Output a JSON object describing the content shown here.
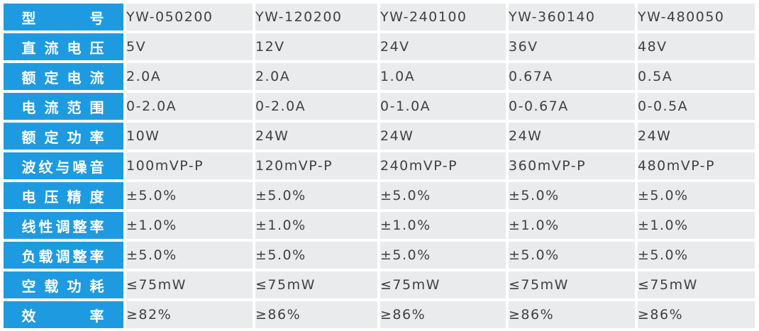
{
  "spec_table": {
    "columns": [
      {
        "model": "YW-050200",
        "dc_voltage": "5V",
        "rated_current": "2.0A",
        "current_range": "0-2.0A",
        "rated_power": "10W",
        "ripple_noise": "100mVP-P",
        "voltage_accuracy": "±5.0%",
        "line_regulation": "±1.0%",
        "load_regulation": "±5.0%",
        "no_load_power": "≤75mW",
        "efficiency": "≥82%"
      },
      {
        "model": "YW-120200",
        "dc_voltage": "12V",
        "rated_current": "2.0A",
        "current_range": "0-2.0A",
        "rated_power": "24W",
        "ripple_noise": "120mVP-P",
        "voltage_accuracy": "±5.0%",
        "line_regulation": "±1.0%",
        "load_regulation": "±5.0%",
        "no_load_power": "≤75mW",
        "efficiency": "≥86%"
      },
      {
        "model": "YW-240100",
        "dc_voltage": "24V",
        "rated_current": "1.0A",
        "current_range": "0-1.0A",
        "rated_power": "24W",
        "ripple_noise": "240mVP-P",
        "voltage_accuracy": "±5.0%",
        "line_regulation": "±1.0%",
        "load_regulation": "±5.0%",
        "no_load_power": "≤75mW",
        "efficiency": "≥86%"
      },
      {
        "model": "YW-360140",
        "dc_voltage": "36V",
        "rated_current": "0.67A",
        "current_range": "0-0.67A",
        "rated_power": "24W",
        "ripple_noise": "360mVP-P",
        "voltage_accuracy": "±5.0%",
        "line_regulation": "±1.0%",
        "load_regulation": "±5.0%",
        "no_load_power": "≤75mW",
        "efficiency": "≥86%"
      },
      {
        "model": "YW-480050",
        "dc_voltage": "48V",
        "rated_current": "0.5A",
        "current_range": "0-0.5A",
        "rated_power": "24W",
        "ripple_noise": "480mVP-P",
        "voltage_accuracy": "±5.0%",
        "line_regulation": "±1.0%",
        "load_regulation": "±5.0%",
        "no_load_power": "≤75mW",
        "efficiency": "≥86%"
      }
    ],
    "row_labels": {
      "model": "型号",
      "dc_voltage": "直流电压",
      "rated_current": "额定电流",
      "current_range": "电流范围",
      "rated_power": "额定功率",
      "ripple_noise": "波纹与噪音",
      "voltage_accuracy": "电压精度",
      "line_regulation": "线性调整率",
      "load_regulation": "负载调整率",
      "no_load_power": "空载功耗",
      "efficiency": "效率"
    },
    "colors": {
      "header_bg": "#1e9be0",
      "header_text": "#ffffff",
      "cell_bg": "#e9ebec",
      "cell_text": "#404040"
    }
  }
}
